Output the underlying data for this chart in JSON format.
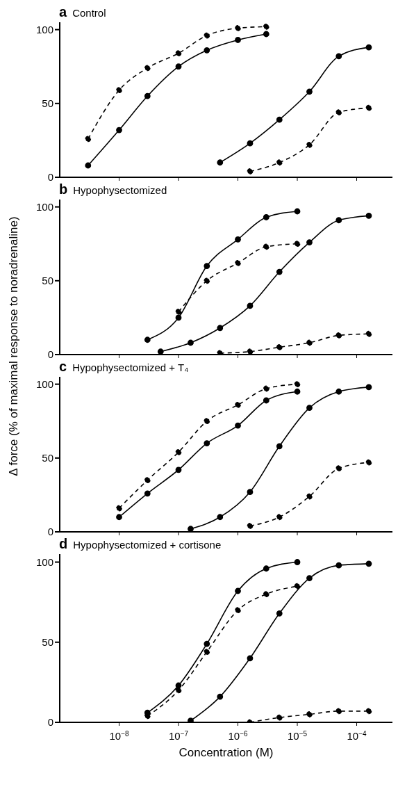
{
  "chart_data": [
    {
      "type": "line",
      "title": "a Control",
      "log": "x",
      "xlim": [
        1e-09,
        0.0004
      ],
      "ylim": [
        0,
        105
      ],
      "yticks": [
        0,
        50,
        100
      ],
      "tick_labels": "y",
      "marker": "circle",
      "xticks": [
        {
          "value": 1e-08,
          "label": null
        },
        {
          "value": 1e-07,
          "label": null
        },
        {
          "value": 1e-06,
          "label": null
        },
        {
          "value": 1e-05,
          "label": null
        },
        {
          "value": 0.0001,
          "label": null
        }
      ],
      "series": [
        {
          "color": "#000000",
          "line_style": "solid",
          "x": [
            3e-09,
            1e-08,
            3e-08,
            1e-07,
            3e-07,
            1e-06,
            3e-06
          ],
          "values": [
            8,
            32,
            55,
            75,
            86,
            93,
            97
          ]
        },
        {
          "color": "#000000",
          "line_style": "dashed",
          "x": [
            3e-09,
            1e-08,
            3e-08,
            1e-07,
            3e-07,
            1e-06,
            3e-06
          ],
          "values": [
            26,
            59,
            74,
            84,
            96,
            101,
            102
          ]
        },
        {
          "color": "#000000",
          "line_style": "solid",
          "x": [
            5e-07,
            1.6e-06,
            5e-06,
            1.6e-05,
            5e-05,
            0.00016
          ],
          "values": [
            10,
            23,
            39,
            58,
            82,
            88
          ]
        },
        {
          "color": "#000000",
          "line_style": "dashed",
          "x": [
            1.6e-06,
            5e-06,
            1.6e-05,
            5e-05,
            0.00016
          ],
          "values": [
            4,
            10,
            22,
            44,
            47
          ]
        }
      ]
    },
    {
      "type": "line",
      "title": "b Hypophysectomized",
      "log": "x",
      "xlim": [
        1e-09,
        0.0004
      ],
      "ylim": [
        0,
        105
      ],
      "yticks": [
        0,
        50,
        100
      ],
      "tick_labels": "y",
      "marker": "circle",
      "xticks": [
        {
          "value": 1e-08,
          "label": null
        },
        {
          "value": 1e-07,
          "label": null
        },
        {
          "value": 1e-06,
          "label": null
        },
        {
          "value": 1e-05,
          "label": null
        },
        {
          "value": 0.0001,
          "label": null
        }
      ],
      "series": [
        {
          "color": "#000000",
          "line_style": "solid",
          "x": [
            3e-08,
            1e-07,
            3e-07,
            1e-06,
            3e-06,
            1e-05
          ],
          "values": [
            10,
            25,
            60,
            78,
            93,
            97
          ]
        },
        {
          "color": "#000000",
          "line_style": "dashed",
          "x": [
            1e-07,
            3e-07,
            1e-06,
            3e-06,
            1e-05
          ],
          "values": [
            29,
            50,
            62,
            73,
            75
          ]
        },
        {
          "color": "#000000",
          "line_style": "solid",
          "x": [
            5e-08,
            1.6e-07,
            5e-07,
            1.6e-06,
            5e-06,
            1.6e-05,
            5e-05,
            0.00016
          ],
          "values": [
            2,
            8,
            18,
            33,
            56,
            76,
            91,
            94
          ]
        },
        {
          "color": "#000000",
          "line_style": "dashed",
          "x": [
            5e-07,
            1.6e-06,
            5e-06,
            1.6e-05,
            5e-05,
            0.00016
          ],
          "values": [
            1,
            2,
            5,
            8,
            13,
            14
          ]
        }
      ]
    },
    {
      "type": "line",
      "title": "c Hypophysectomized + T₄",
      "ylabel": "Δ force (% of maximal response to noradrenaline)",
      "log": "x",
      "xlim": [
        1e-09,
        0.0004
      ],
      "ylim": [
        0,
        105
      ],
      "yticks": [
        0,
        50,
        100
      ],
      "tick_labels": "y",
      "marker": "circle",
      "xticks": [
        {
          "value": 1e-08,
          "label": null
        },
        {
          "value": 1e-07,
          "label": null
        },
        {
          "value": 1e-06,
          "label": null
        },
        {
          "value": 1e-05,
          "label": null
        },
        {
          "value": 0.0001,
          "label": null
        }
      ],
      "series": [
        {
          "color": "#000000",
          "line_style": "solid",
          "x": [
            1e-08,
            3e-08,
            1e-07,
            3e-07,
            1e-06,
            3e-06,
            1e-05
          ],
          "values": [
            10,
            26,
            42,
            60,
            72,
            89,
            95
          ]
        },
        {
          "color": "#000000",
          "line_style": "dashed",
          "x": [
            1e-08,
            3e-08,
            1e-07,
            3e-07,
            1e-06,
            3e-06,
            1e-05
          ],
          "values": [
            16,
            35,
            54,
            75,
            86,
            97,
            100
          ]
        },
        {
          "color": "#000000",
          "line_style": "solid",
          "x": [
            1.6e-07,
            5e-07,
            1.6e-06,
            5e-06,
            1.6e-05,
            5e-05,
            0.00016
          ],
          "values": [
            2,
            10,
            27,
            58,
            84,
            95,
            98
          ]
        },
        {
          "color": "#000000",
          "line_style": "dashed",
          "x": [
            1.6e-06,
            5e-06,
            1.6e-05,
            5e-05,
            0.00016
          ],
          "values": [
            4,
            10,
            24,
            43,
            47
          ]
        }
      ]
    },
    {
      "type": "line",
      "title": "d Hypophysectomized + cortisone",
      "xlabel": "Concentration (M)",
      "log": "x",
      "xlim": [
        1e-09,
        0.0004
      ],
      "ylim": [
        0,
        105
      ],
      "yticks": [
        0,
        50,
        100
      ],
      "marker": "circle",
      "xticks": [
        {
          "value": 1e-08,
          "label": "10$^{−8}$"
        },
        {
          "value": 1e-07,
          "label": "10$^{−7}$"
        },
        {
          "value": 1e-06,
          "label": "10$^{−6}$"
        },
        {
          "value": 1e-05,
          "label": "10$^{−5}$"
        },
        {
          "value": 0.0001,
          "label": "10$^{−4}$"
        }
      ],
      "series": [
        {
          "color": "#000000",
          "line_style": "solid",
          "x": [
            3e-08,
            1e-07,
            3e-07,
            1e-06,
            3e-06,
            1e-05
          ],
          "values": [
            6,
            23,
            49,
            82,
            96,
            100
          ]
        },
        {
          "color": "#000000",
          "line_style": "dashed",
          "x": [
            3e-08,
            1e-07,
            3e-07,
            1e-06,
            3e-06,
            1e-05
          ],
          "values": [
            4,
            20,
            44,
            70,
            80,
            85
          ]
        },
        {
          "color": "#000000",
          "line_style": "solid",
          "x": [
            1.6e-07,
            5e-07,
            1.6e-06,
            5e-06,
            1.6e-05,
            5e-05,
            0.00016
          ],
          "values": [
            1,
            16,
            40,
            68,
            90,
            98,
            99
          ]
        },
        {
          "color": "#000000",
          "line_style": "dashed",
          "x": [
            1.6e-06,
            5e-06,
            1.6e-05,
            5e-05,
            0.00016
          ],
          "values": [
            0,
            3,
            5,
            7,
            7
          ]
        }
      ]
    }
  ]
}
